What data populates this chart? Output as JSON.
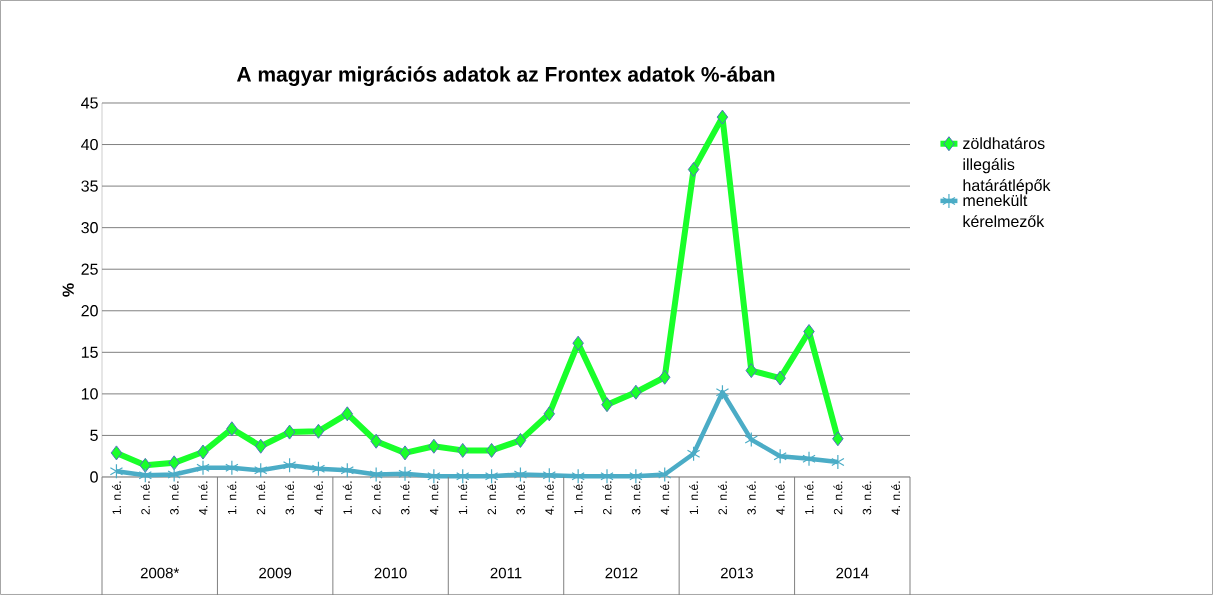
{
  "chart_data": {
    "type": "line",
    "title": "A magyar migrációs adatok az Frontex adatok %-ában",
    "ylabel": "%",
    "categories": [
      "1. n.é.",
      "2. n.é.",
      "3. n.é.",
      "4. n.é.",
      "1. n.é.",
      "2. n.é.",
      "3. n.é.",
      "4. n.é.",
      "1. n.é.",
      "2. n.é.",
      "3. n.é.",
      "4. n.é.",
      "1. n.é.",
      "2. n.é.",
      "3. n.é.",
      "4. n.é.",
      "1. n.é.",
      "2. n.é.",
      "3. n.é.",
      "4. n.é.",
      "1. n.é.",
      "2. n.é.",
      "3. n.é.",
      "4. n.é.",
      "1. n.é.",
      "2. n.é.",
      "3. n.é.",
      "4. n.é."
    ],
    "annotations": [
      "2008*",
      "2009",
      "2010",
      "2011",
      "2012",
      "2013",
      "2014"
    ],
    "series": [
      {
        "name": "zöldhatáros illegális határátlépők",
        "color": "#19ff2a",
        "marker": "diamond",
        "values": [
          2.9,
          1.4,
          1.7,
          3.0,
          5.8,
          3.7,
          5.4,
          5.5,
          7.6,
          4.3,
          2.9,
          3.7,
          3.2,
          3.2,
          4.4,
          7.6,
          16.1,
          8.7,
          10.2,
          12.0,
          37.0,
          43.3,
          12.8,
          11.9,
          17.5,
          4.6,
          null,
          null
        ]
      },
      {
        "name": "menekült kérelmezők",
        "color": "#4bacc6",
        "marker": "cross",
        "values": [
          0.7,
          0.2,
          0.3,
          1.1,
          1.1,
          0.8,
          1.4,
          1.0,
          0.8,
          0.3,
          0.4,
          0.1,
          0.1,
          0.1,
          0.3,
          0.2,
          0.1,
          0.1,
          0.1,
          0.3,
          2.8,
          10.2,
          4.5,
          2.5,
          2.2,
          1.8,
          null,
          null
        ]
      }
    ],
    "ylim": [
      0,
      45
    ],
    "yticks": [
      0,
      5,
      10,
      15,
      20,
      25,
      30,
      35,
      40,
      45
    ],
    "grid": "y",
    "legend": "right",
    "line_style": "solid"
  }
}
